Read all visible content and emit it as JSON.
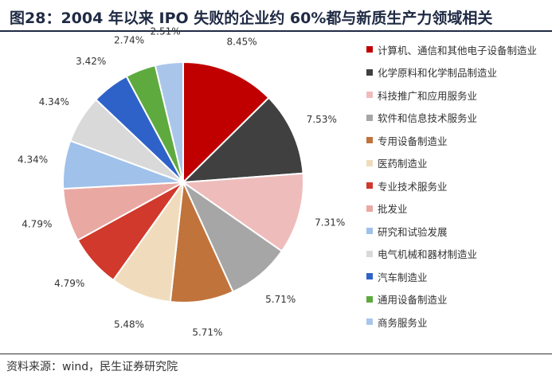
{
  "header": {
    "title": "图28：2004 年以来 IPO 失败的企业约 60%都与新质生产力领域相关"
  },
  "footer": {
    "source": "资料来源：wind，民生证券研究院"
  },
  "chart_data": {
    "type": "pie",
    "title": "",
    "categories": [
      "计算机、通信和其他电子设备制造业",
      "化学原料和化学制品制造业",
      "科技推广和应用服务业",
      "软件和信息技术服务业",
      "专用设备制造业",
      "医药制造业",
      "专业技术服务业",
      "批发业",
      "研究和试验发展",
      "电气机械和器材制造业",
      "汽车制造业",
      "通用设备制造业",
      "商务服务业"
    ],
    "values": [
      8.45,
      7.53,
      7.31,
      5.71,
      5.71,
      5.48,
      4.79,
      4.79,
      4.34,
      4.34,
      3.42,
      2.74,
      2.51
    ],
    "labels": [
      "8.45%",
      "7.53%",
      "7.31%",
      "5.71%",
      "5.71%",
      "5.48%",
      "4.79%",
      "4.79%",
      "4.34%",
      "4.34%",
      "3.42%",
      "2.74%",
      "2.51%"
    ],
    "colors": [
      "#c00000",
      "#404040",
      "#efbcbc",
      "#a6a6a6",
      "#c0733b",
      "#f0dcbc",
      "#d0392b",
      "#eaa8a3",
      "#9fc1ea",
      "#d9d9d9",
      "#2f62c8",
      "#5eaa3f",
      "#a9c6ea"
    ],
    "legend_position": "right",
    "start_angle": "12 o'clock",
    "direction": "clockwise"
  }
}
